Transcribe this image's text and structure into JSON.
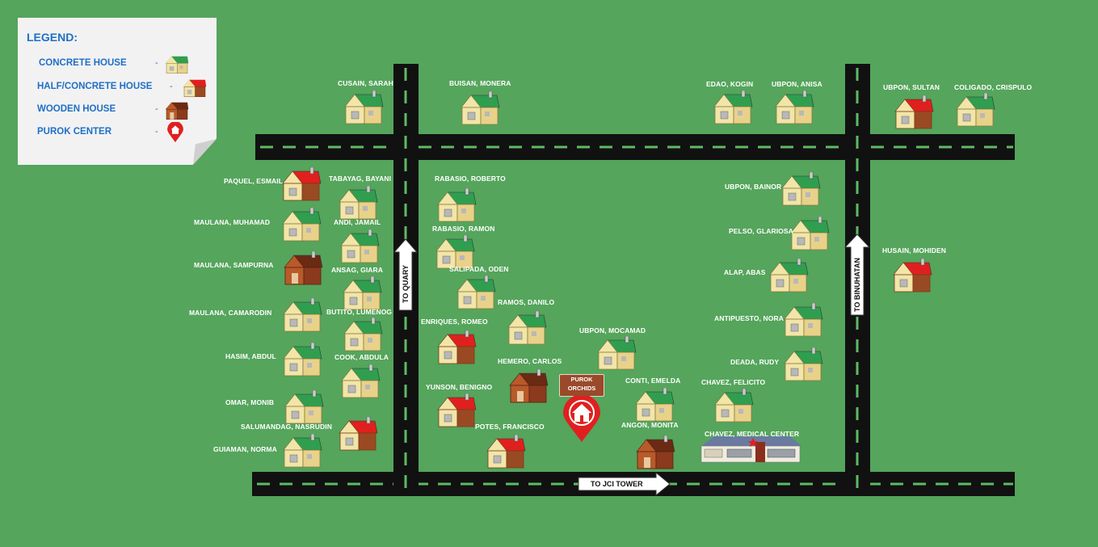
{
  "legend": {
    "title": "LEGEND:",
    "items": [
      {
        "label": "CONCRETE HOUSE",
        "icon": "concrete-house-icon"
      },
      {
        "label": "HALF/CONCRETE HOUSE",
        "icon": "half-concrete-house-icon"
      },
      {
        "label": "WOODEN HOUSE",
        "icon": "wooden-house-icon"
      },
      {
        "label": "PUROK CENTER",
        "icon": "purok-center-icon"
      }
    ],
    "dash": "-"
  },
  "colors": {
    "background": "#55a55c",
    "road": "#111111",
    "road_dash": "#5dbb63",
    "concrete_roof": "#2f9e4f",
    "half_concrete_roof": "#e0201e",
    "wooden_roof": "#8b3a1e",
    "legend_text": "#1f6fc7",
    "pin": "#e02020"
  },
  "houses": [
    {
      "type": "concrete",
      "label": "CUSAIN, SARAH"
    },
    {
      "type": "concrete",
      "label": "BUISAN, MONERA"
    },
    {
      "type": "concrete",
      "label": "EDAO, KOGIN"
    },
    {
      "type": "concrete",
      "label": "UBPON, ANISA"
    },
    {
      "type": "half",
      "label": "UBPON, SULTAN"
    },
    {
      "type": "concrete",
      "label": "COLIGADO, CRISPULO"
    },
    {
      "type": "half",
      "label": "PAQUEL, ESMAIL"
    },
    {
      "type": "concrete",
      "label": "TABAYAG, BAYANI"
    },
    {
      "type": "concrete",
      "label": "MAULANA, MUHAMAD"
    },
    {
      "type": "concrete",
      "label": "ANDI, JAMAIL"
    },
    {
      "type": "wooden",
      "label": "MAULANA, SAMPURNA"
    },
    {
      "type": "concrete",
      "label": "ANSAG, GIARA"
    },
    {
      "type": "concrete",
      "label": "MAULANA, CAMARODIN"
    },
    {
      "type": "concrete",
      "label": "BUTITO, LUMENOG"
    },
    {
      "type": "concrete",
      "label": "HASIM, ABDUL"
    },
    {
      "type": "concrete",
      "label": "COOK, ABDULA"
    },
    {
      "type": "concrete",
      "label": "OMAR, MONIB"
    },
    {
      "type": "half",
      "label": "SALUMANDAG, NASRUDIN"
    },
    {
      "type": "concrete",
      "label": "GUIAMAN, NORMA"
    },
    {
      "type": "concrete",
      "label": "RABASIO, ROBERTO"
    },
    {
      "type": "concrete",
      "label": "RABASIO, RAMON"
    },
    {
      "type": "concrete",
      "label": "SALIPADA, ODEN"
    },
    {
      "type": "concrete",
      "label": "RAMOS, DANILO"
    },
    {
      "type": "half",
      "label": "ENRIQUES, ROMEO"
    },
    {
      "type": "wooden",
      "label": "HEMERO, CARLOS"
    },
    {
      "type": "half",
      "label": "YUNSON, BENIGNO"
    },
    {
      "type": "half",
      "label": "POTES, FRANCISCO"
    },
    {
      "type": "concrete",
      "label": "UBPON, MOCAMAD"
    },
    {
      "type": "concrete",
      "label": "CONTI, EMELDA"
    },
    {
      "type": "wooden",
      "label": "ANGON, MONITA"
    },
    {
      "type": "concrete",
      "label": "UBPON, BAINOR"
    },
    {
      "type": "concrete",
      "label": "PELSO, GLARIOSA"
    },
    {
      "type": "concrete",
      "label": "ALAP, ABAS"
    },
    {
      "type": "concrete",
      "label": "ANTIPUESTO, NORA"
    },
    {
      "type": "concrete",
      "label": "DEADA, RUDY"
    },
    {
      "type": "concrete",
      "label": "CHAVEZ, FELICITO"
    },
    {
      "type": "half",
      "label": "HUSAIN, MOHIDEN"
    }
  ],
  "medical_center": {
    "label": "CHAVEZ, MEDICAL CENTER",
    "icon": "medical-center-icon"
  },
  "purok_center": {
    "line1": "PUROK",
    "line2": "ORCHIDS",
    "icon": "purok-center-pin-icon"
  },
  "signs": {
    "quary": "TO QUARY",
    "binuhatan": "TO BINUHATAN",
    "jci": "TO JCI TOWER"
  }
}
